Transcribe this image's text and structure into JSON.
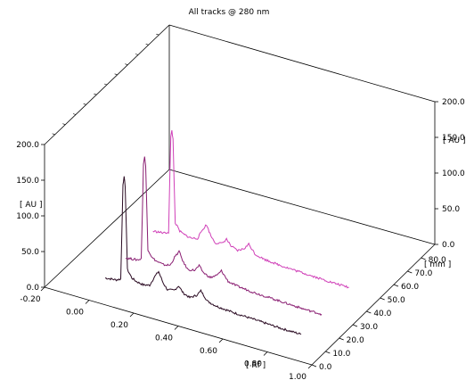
{
  "chart_data": {
    "type": "line",
    "title": "All tracks @ 280 nm",
    "xlabel": "[ Rf ]",
    "ylabel": "[ AU ]",
    "zlabel": "[ mm ]",
    "xlim": [
      -0.2,
      1.0
    ],
    "ylim": [
      0,
      200
    ],
    "zlim": [
      0,
      90
    ],
    "x_ticks": [
      "-0.20",
      "0.00",
      "0.20",
      "0.40",
      "0.60",
      "0.80",
      "1.00"
    ],
    "y_ticks_left": [
      "0.0",
      "50.0",
      "100.0",
      "150.0",
      "200.0"
    ],
    "y_ticks_right": [
      "0.0",
      "50.0",
      "100.0",
      "150.0",
      "200.0"
    ],
    "z_ticks": [
      "0.0",
      "10.0",
      "20.0",
      "30.0",
      "40.0",
      "50.0",
      "60.0",
      "70.0",
      "80.0"
    ],
    "series": [
      {
        "color": "#2a0a22",
        "track_mm": 15,
        "points": [
          [
            -0.02,
            1
          ],
          [
            0.0,
            2
          ],
          [
            0.03,
            3
          ],
          [
            0.05,
            6
          ],
          [
            0.06,
            140
          ],
          [
            0.065,
            150
          ],
          [
            0.07,
            138
          ],
          [
            0.08,
            22
          ],
          [
            0.1,
            12
          ],
          [
            0.12,
            9
          ],
          [
            0.15,
            7
          ],
          [
            0.18,
            9
          ],
          [
            0.2,
            22
          ],
          [
            0.22,
            32
          ],
          [
            0.24,
            18
          ],
          [
            0.26,
            10
          ],
          [
            0.29,
            12
          ],
          [
            0.31,
            20
          ],
          [
            0.33,
            12
          ],
          [
            0.36,
            8
          ],
          [
            0.39,
            14
          ],
          [
            0.41,
            22
          ],
          [
            0.44,
            10
          ],
          [
            0.48,
            7
          ],
          [
            0.55,
            5
          ],
          [
            0.62,
            4
          ],
          [
            0.7,
            3
          ],
          [
            0.78,
            2
          ],
          [
            0.86,
            2
          ]
        ]
      },
      {
        "color": "#8a1e72",
        "track_mm": 30,
        "points": [
          [
            -0.02,
            1
          ],
          [
            0.0,
            2
          ],
          [
            0.03,
            3
          ],
          [
            0.05,
            6
          ],
          [
            0.06,
            140
          ],
          [
            0.065,
            150
          ],
          [
            0.07,
            138
          ],
          [
            0.08,
            22
          ],
          [
            0.1,
            12
          ],
          [
            0.12,
            9
          ],
          [
            0.15,
            7
          ],
          [
            0.18,
            9
          ],
          [
            0.2,
            22
          ],
          [
            0.22,
            32
          ],
          [
            0.24,
            18
          ],
          [
            0.26,
            10
          ],
          [
            0.29,
            12
          ],
          [
            0.31,
            20
          ],
          [
            0.33,
            12
          ],
          [
            0.36,
            8
          ],
          [
            0.39,
            14
          ],
          [
            0.41,
            22
          ],
          [
            0.44,
            10
          ],
          [
            0.48,
            7
          ],
          [
            0.55,
            5
          ],
          [
            0.62,
            4
          ],
          [
            0.7,
            3
          ],
          [
            0.78,
            2
          ],
          [
            0.86,
            2
          ]
        ]
      },
      {
        "color": "#d040b8",
        "track_mm": 50,
        "points": [
          [
            -0.02,
            1
          ],
          [
            0.0,
            2
          ],
          [
            0.03,
            3
          ],
          [
            0.05,
            6
          ],
          [
            0.06,
            140
          ],
          [
            0.065,
            150
          ],
          [
            0.07,
            138
          ],
          [
            0.08,
            22
          ],
          [
            0.1,
            12
          ],
          [
            0.12,
            9
          ],
          [
            0.15,
            7
          ],
          [
            0.18,
            9
          ],
          [
            0.2,
            22
          ],
          [
            0.22,
            32
          ],
          [
            0.24,
            18
          ],
          [
            0.26,
            10
          ],
          [
            0.29,
            12
          ],
          [
            0.31,
            20
          ],
          [
            0.33,
            12
          ],
          [
            0.36,
            8
          ],
          [
            0.39,
            14
          ],
          [
            0.41,
            22
          ],
          [
            0.44,
            10
          ],
          [
            0.48,
            7
          ],
          [
            0.55,
            5
          ],
          [
            0.62,
            4
          ],
          [
            0.7,
            3
          ],
          [
            0.78,
            2
          ],
          [
            0.86,
            2
          ]
        ]
      }
    ],
    "grid": false,
    "legend": "none"
  }
}
